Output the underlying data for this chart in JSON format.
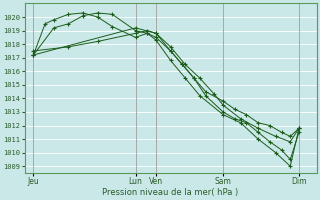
{
  "xlabel": "Pression niveau de la mer( hPa )",
  "background_color": "#cbe8e8",
  "grid_color": "#b0d8d8",
  "line_color": "#1a5c1a",
  "marker_color": "#1a5c1a",
  "ylim": [
    1008.5,
    1021.0
  ],
  "yticks": [
    1009,
    1010,
    1011,
    1012,
    1013,
    1014,
    1015,
    1016,
    1017,
    1018,
    1019,
    1020
  ],
  "xlim": [
    0,
    100
  ],
  "xtick_positions": [
    3,
    38,
    45,
    68,
    94
  ],
  "xtick_labels": [
    "Jeu",
    "Lun",
    "Ven",
    "Sam",
    "Dim"
  ],
  "vlines": [
    3,
    38,
    45,
    68,
    94
  ],
  "series": [
    {
      "x": [
        3,
        7,
        10,
        15,
        20,
        25,
        30,
        38,
        42,
        45,
        50,
        54,
        58,
        62,
        68,
        72,
        76,
        80,
        84,
        88,
        91,
        94
      ],
      "y": [
        1017.2,
        1019.5,
        1019.8,
        1020.2,
        1020.3,
        1020.0,
        1019.3,
        1018.5,
        1018.8,
        1018.5,
        1017.5,
        1016.5,
        1015.5,
        1014.5,
        1013.8,
        1013.2,
        1012.8,
        1012.2,
        1012.0,
        1011.5,
        1011.2,
        1011.8
      ]
    },
    {
      "x": [
        3,
        10,
        15,
        20,
        25,
        30,
        38,
        42,
        45,
        50,
        55,
        60,
        68,
        74,
        80,
        86,
        91,
        94
      ],
      "y": [
        1017.2,
        1019.2,
        1019.5,
        1020.1,
        1020.3,
        1020.2,
        1019.0,
        1018.8,
        1018.3,
        1016.8,
        1015.5,
        1014.2,
        1012.8,
        1012.2,
        1011.0,
        1010.0,
        1009.0,
        1011.8
      ]
    },
    {
      "x": [
        3,
        15,
        25,
        38,
        42,
        45,
        50,
        54,
        58,
        62,
        68,
        72,
        76,
        80,
        84,
        88,
        91,
        94
      ],
      "y": [
        1017.5,
        1017.8,
        1018.2,
        1018.8,
        1019.0,
        1018.8,
        1017.5,
        1016.5,
        1015.5,
        1014.2,
        1013.0,
        1012.5,
        1012.2,
        1011.5,
        1010.8,
        1010.2,
        1009.5,
        1011.5
      ]
    },
    {
      "x": [
        3,
        38,
        45,
        50,
        55,
        60,
        65,
        68,
        74,
        80,
        86,
        91,
        94
      ],
      "y": [
        1017.2,
        1019.2,
        1018.8,
        1017.8,
        1016.5,
        1015.5,
        1014.3,
        1013.5,
        1012.5,
        1011.8,
        1011.2,
        1010.8,
        1011.8
      ]
    }
  ]
}
